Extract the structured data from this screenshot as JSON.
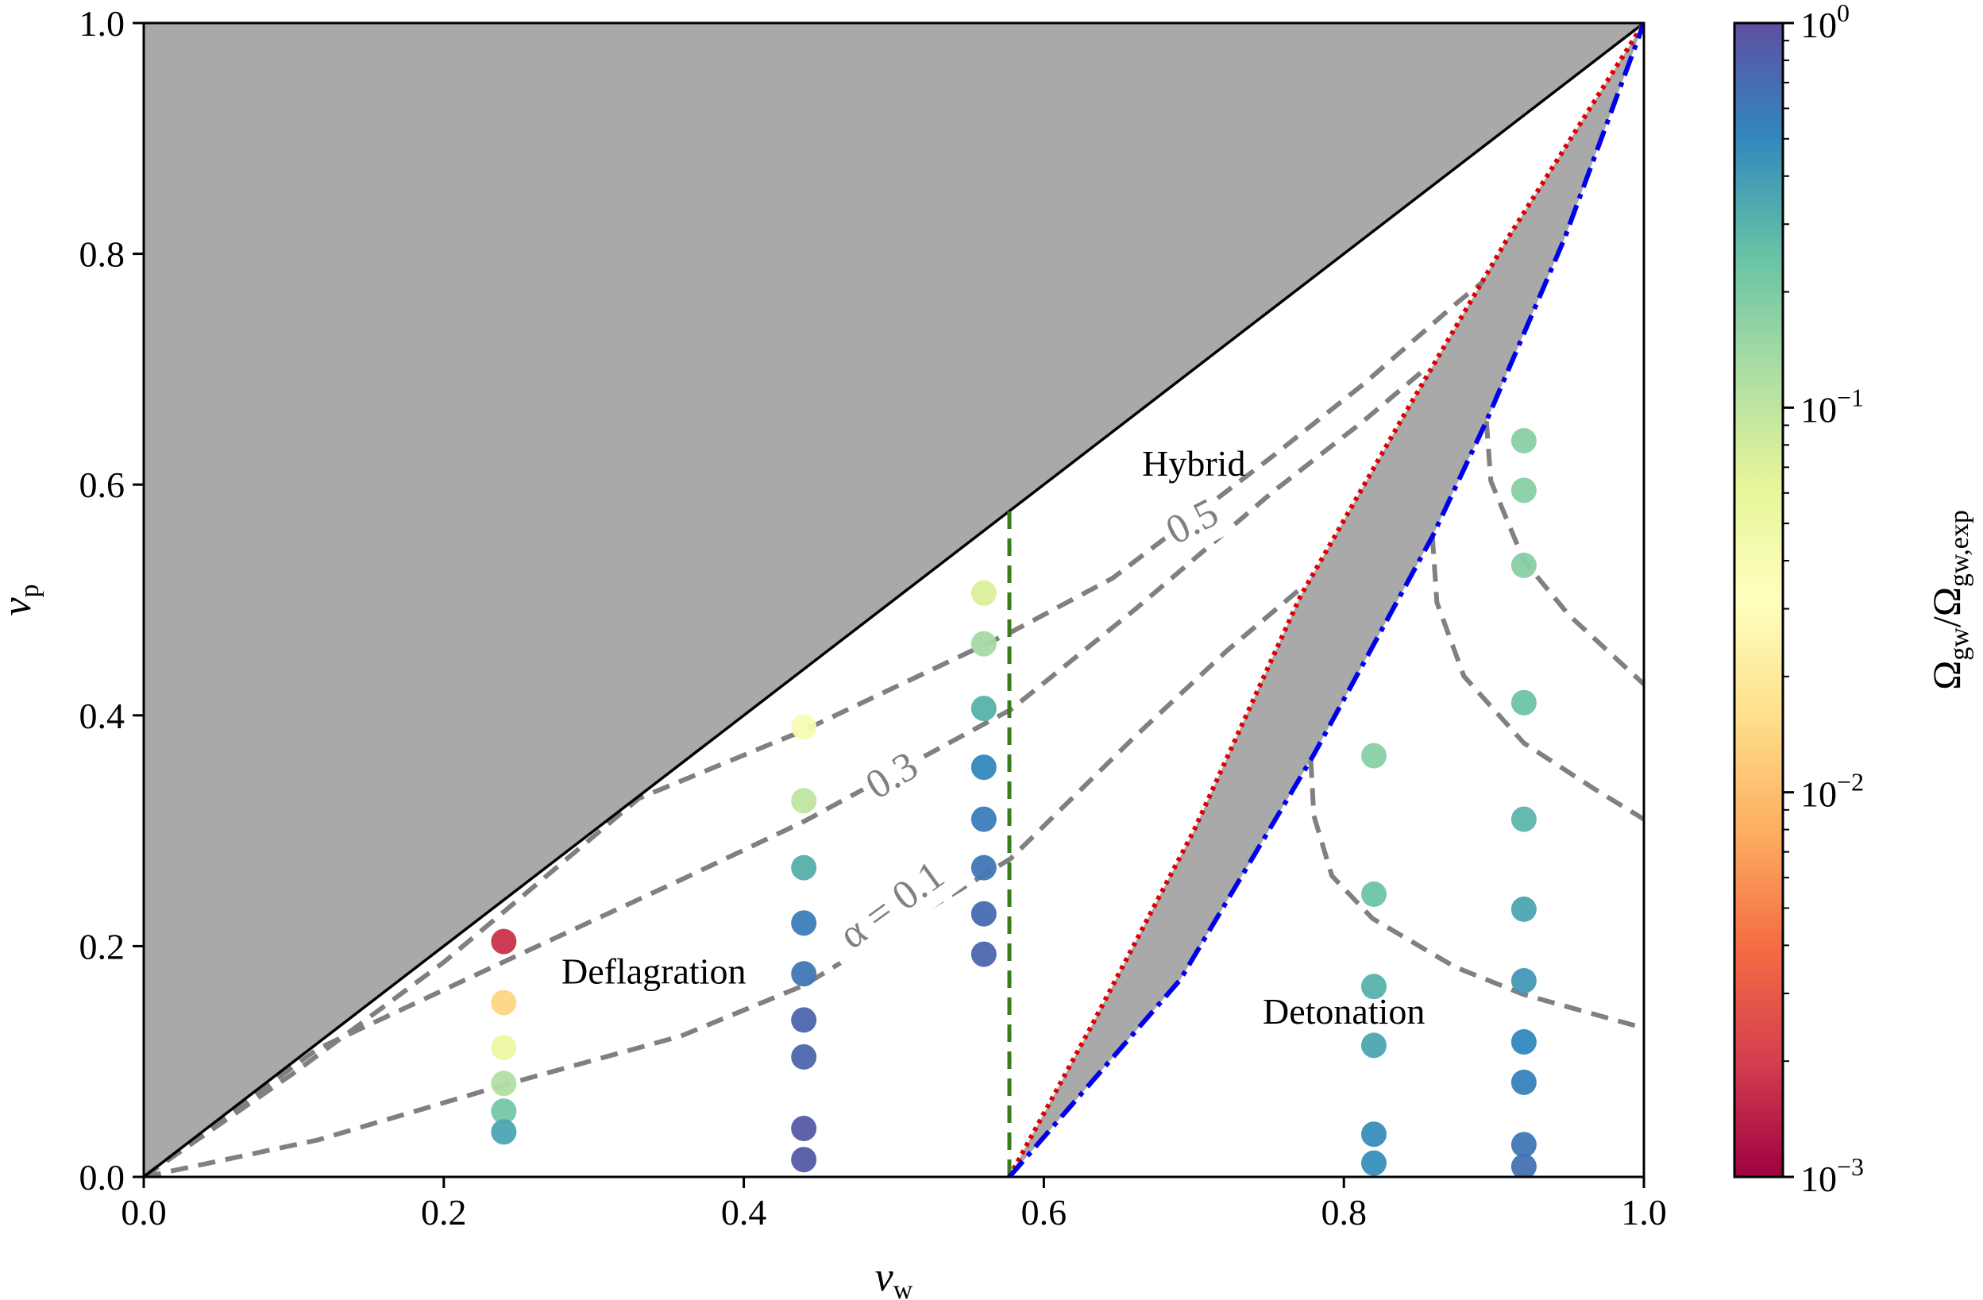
{
  "chart_data": {
    "type": "scatter",
    "xlabel": {
      "main": "v",
      "sub": "w"
    },
    "ylabel": {
      "main": "v",
      "sub": "p"
    },
    "xlim": [
      0,
      1
    ],
    "ylim": [
      0,
      1
    ],
    "xticks": [
      "0.0",
      "0.2",
      "0.4",
      "0.6",
      "0.8",
      "1.0"
    ],
    "yticks": [
      "0.0",
      "0.2",
      "0.4",
      "0.6",
      "0.8",
      "1.0"
    ],
    "grid": false,
    "colors": {
      "forbidden_fill": "#a9a9a9",
      "boundary": "#000000",
      "contour": "#808080",
      "sound_speed_line": "#3a7d1a",
      "red_dotted": "#e00000",
      "blue_dashdot": "#0000ee"
    },
    "points": [
      {
        "x": 0.24,
        "y": 0.204,
        "log_ratio": -2.76
      },
      {
        "x": 0.24,
        "y": 0.151,
        "log_ratio": -1.86
      },
      {
        "x": 0.24,
        "y": 0.112,
        "log_ratio": -1.29
      },
      {
        "x": 0.24,
        "y": 0.081,
        "log_ratio": -0.93
      },
      {
        "x": 0.24,
        "y": 0.057,
        "log_ratio": -0.66
      },
      {
        "x": 0.24,
        "y": 0.039,
        "log_ratio": -0.45
      },
      {
        "x": 0.44,
        "y": 0.39,
        "log_ratio": -1.41
      },
      {
        "x": 0.44,
        "y": 0.326,
        "log_ratio": -1.0
      },
      {
        "x": 0.44,
        "y": 0.268,
        "log_ratio": -0.5
      },
      {
        "x": 0.44,
        "y": 0.22,
        "log_ratio": -0.24
      },
      {
        "x": 0.44,
        "y": 0.176,
        "log_ratio": -0.21
      },
      {
        "x": 0.44,
        "y": 0.136,
        "log_ratio": -0.12
      },
      {
        "x": 0.44,
        "y": 0.104,
        "log_ratio": -0.12
      },
      {
        "x": 0.44,
        "y": 0.042,
        "log_ratio": -0.06
      },
      {
        "x": 0.44,
        "y": 0.015,
        "log_ratio": -0.06
      },
      {
        "x": 0.56,
        "y": 0.506,
        "log_ratio": -1.14
      },
      {
        "x": 0.56,
        "y": 0.462,
        "log_ratio": -0.87
      },
      {
        "x": 0.56,
        "y": 0.406,
        "log_ratio": -0.51
      },
      {
        "x": 0.56,
        "y": 0.355,
        "log_ratio": -0.3
      },
      {
        "x": 0.56,
        "y": 0.31,
        "log_ratio": -0.24
      },
      {
        "x": 0.56,
        "y": 0.268,
        "log_ratio": -0.21
      },
      {
        "x": 0.56,
        "y": 0.228,
        "log_ratio": -0.15
      },
      {
        "x": 0.56,
        "y": 0.193,
        "log_ratio": -0.12
      },
      {
        "x": 0.82,
        "y": 0.365,
        "log_ratio": -0.75
      },
      {
        "x": 0.82,
        "y": 0.245,
        "log_ratio": -0.63
      },
      {
        "x": 0.82,
        "y": 0.165,
        "log_ratio": -0.51
      },
      {
        "x": 0.82,
        "y": 0.114,
        "log_ratio": -0.45
      },
      {
        "x": 0.82,
        "y": 0.037,
        "log_ratio": -0.33
      },
      {
        "x": 0.82,
        "y": 0.012,
        "log_ratio": -0.33
      },
      {
        "x": 0.92,
        "y": 0.638,
        "log_ratio": -0.75
      },
      {
        "x": 0.92,
        "y": 0.595,
        "log_ratio": -0.75
      },
      {
        "x": 0.92,
        "y": 0.53,
        "log_ratio": -0.75
      },
      {
        "x": 0.92,
        "y": 0.411,
        "log_ratio": -0.63
      },
      {
        "x": 0.92,
        "y": 0.31,
        "log_ratio": -0.54
      },
      {
        "x": 0.92,
        "y": 0.232,
        "log_ratio": -0.45
      },
      {
        "x": 0.92,
        "y": 0.17,
        "log_ratio": -0.39
      },
      {
        "x": 0.92,
        "y": 0.117,
        "log_ratio": -0.3
      },
      {
        "x": 0.92,
        "y": 0.082,
        "log_ratio": -0.27
      },
      {
        "x": 0.92,
        "y": 0.028,
        "log_ratio": -0.21
      },
      {
        "x": 0.92,
        "y": 0.009,
        "log_ratio": -0.18
      }
    ],
    "curves": {
      "boundary_vp_eq_vw": [
        [
          0,
          0
        ],
        [
          1,
          1
        ]
      ],
      "sound_speed_vertical": [
        [
          0.577,
          0
        ],
        [
          0.577,
          0.577
        ]
      ],
      "red_dotted": [
        [
          0.577,
          0
        ],
        [
          0.631,
          0.129
        ],
        [
          0.7,
          0.3
        ],
        [
          0.771,
          0.503
        ],
        [
          0.84,
          0.66
        ],
        [
          0.909,
          0.813
        ],
        [
          1,
          1
        ]
      ],
      "blue_dashdot": [
        [
          0.577,
          0
        ],
        [
          0.691,
          0.171
        ],
        [
          0.78,
          0.366
        ],
        [
          0.859,
          0.555
        ],
        [
          0.895,
          0.655
        ],
        [
          0.947,
          0.813
        ],
        [
          1,
          1
        ]
      ],
      "contours": [
        {
          "alpha": "0.1",
          "branch": "deflagration-hybrid",
          "points": [
            [
              0,
              0
            ],
            [
              0.116,
              0.032
            ],
            [
              0.241,
              0.08
            ],
            [
              0.358,
              0.122
            ],
            [
              0.44,
              0.166
            ],
            [
              0.578,
              0.276
            ],
            [
              0.661,
              0.382
            ],
            [
              0.722,
              0.456
            ],
            [
              0.774,
              0.513
            ]
          ]
        },
        {
          "alpha": "0.3",
          "branch": "deflagration-hybrid",
          "points": [
            [
              0,
              0
            ],
            [
              0.116,
              0.111
            ],
            [
              0.241,
              0.187
            ],
            [
              0.359,
              0.258
            ],
            [
              0.44,
              0.308
            ],
            [
              0.578,
              0.405
            ],
            [
              0.661,
              0.492
            ],
            [
              0.752,
              0.593
            ],
            [
              0.813,
              0.655
            ],
            [
              0.854,
              0.7
            ]
          ]
        },
        {
          "alpha": "0.5",
          "branch": "deflagration-hybrid",
          "points": [
            [
              0,
              0
            ],
            [
              0.1,
              0.09
            ],
            [
              0.2,
              0.186
            ],
            [
              0.33,
              0.328
            ],
            [
              0.44,
              0.387
            ],
            [
              0.578,
              0.472
            ],
            [
              0.646,
              0.519
            ],
            [
              0.752,
              0.624
            ],
            [
              0.813,
              0.687
            ],
            [
              0.874,
              0.756
            ],
            [
              0.893,
              0.776
            ]
          ]
        },
        {
          "alpha": "0.1",
          "branch": "detonation",
          "points": [
            [
              0.778,
              0.361
            ],
            [
              0.78,
              0.313
            ],
            [
              0.792,
              0.261
            ],
            [
              0.819,
              0.224
            ],
            [
              0.874,
              0.182
            ],
            [
              0.92,
              0.158
            ],
            [
              1.0,
              0.129
            ]
          ]
        },
        {
          "alpha": "0.3",
          "branch": "detonation",
          "points": [
            [
              0.859,
              0.555
            ],
            [
              0.862,
              0.498
            ],
            [
              0.88,
              0.434
            ],
            [
              0.92,
              0.376
            ],
            [
              0.966,
              0.337
            ],
            [
              1.0,
              0.31
            ]
          ]
        },
        {
          "alpha": "0.5",
          "branch": "detonation",
          "points": [
            [
              0.895,
              0.655
            ],
            [
              0.898,
              0.603
            ],
            [
              0.92,
              0.534
            ],
            [
              0.95,
              0.487
            ],
            [
              1.0,
              0.427
            ]
          ]
        }
      ]
    },
    "annotations": [
      {
        "text": "Deflagration",
        "x": 0.34,
        "y": 0.175,
        "kind": "region"
      },
      {
        "text": "Hybrid",
        "x": 0.7,
        "y": 0.615,
        "kind": "region"
      },
      {
        "text": "Detonation",
        "x": 0.8,
        "y": 0.14,
        "kind": "region"
      },
      {
        "text": "α = 0.1",
        "x": 0.5,
        "y": 0.233,
        "kind": "contour",
        "angle": -36
      },
      {
        "text": "0.3",
        "x": 0.5,
        "y": 0.345,
        "kind": "contour",
        "angle": -31
      },
      {
        "text": "0.5",
        "x": 0.7,
        "y": 0.565,
        "kind": "contour",
        "angle": -27
      }
    ],
    "colorbar": {
      "label": {
        "a": "Ω",
        "a_sub": "gw",
        "sep": "/",
        "b": "Ω",
        "b_sub": "gw,exp"
      },
      "scale": "log",
      "range": [
        0.001,
        1
      ],
      "colormap": "Spectral",
      "ticks": [
        {
          "base": "10",
          "exp": "0",
          "log": 0
        },
        {
          "base": "10",
          "exp": "−1",
          "log": -1
        },
        {
          "base": "10",
          "exp": "−2",
          "log": -2
        },
        {
          "base": "10",
          "exp": "−3",
          "log": -3
        }
      ]
    }
  }
}
